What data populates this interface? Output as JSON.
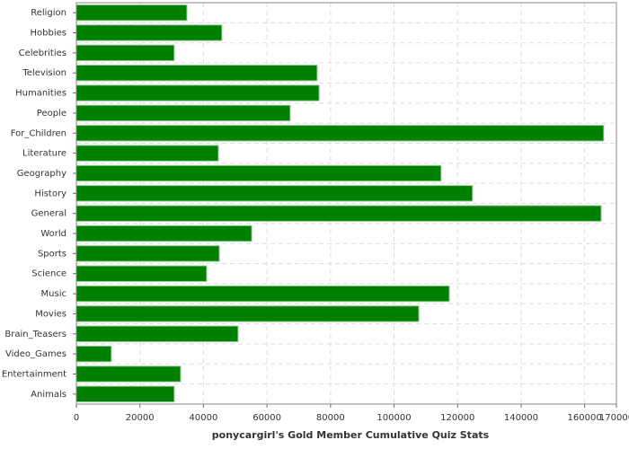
{
  "chart_data": {
    "type": "bar",
    "orientation": "horizontal",
    "x_label": "ponycargirl's Gold Member Cumulative Quiz Stats",
    "categories": [
      "Religion",
      "Hobbies",
      "Celebrities",
      "Television",
      "Humanities",
      "People",
      "For_Children",
      "Literature",
      "Geography",
      "History",
      "General",
      "World",
      "Sports",
      "Science",
      "Music",
      "Movies",
      "Brain_Teasers",
      "Video_Games",
      "Entertainment",
      "Animals"
    ],
    "values": [
      34800,
      45800,
      30800,
      75800,
      76400,
      67300,
      166000,
      44700,
      114800,
      124700,
      165200,
      55200,
      45000,
      41000,
      117400,
      107800,
      50900,
      11000,
      32800,
      30800
    ],
    "color": "#008000",
    "xlim": [
      0,
      170000
    ],
    "xticks": [
      0,
      20000,
      40000,
      60000,
      80000,
      100000,
      120000,
      140000,
      160000,
      170000
    ],
    "grid": true
  }
}
